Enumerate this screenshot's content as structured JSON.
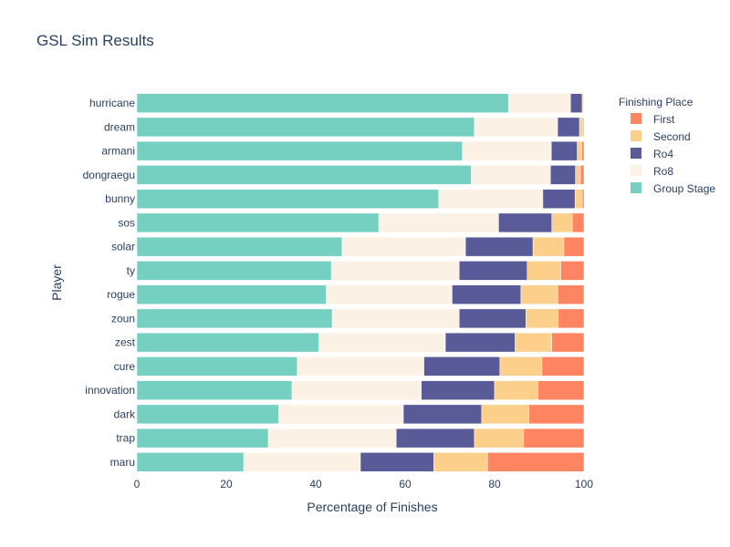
{
  "colors": {
    "First": "#ff8462",
    "Second": "#fcd08a",
    "Ro4": "#595b98",
    "Ro8": "#fbf1e4",
    "Group Stage": "#75d0c1",
    "text": "#2a3f5f"
  },
  "chart_data": {
    "type": "bar",
    "orientation": "horizontal",
    "stacked": true,
    "title": "GSL Sim Results",
    "xlabel": "Percentage of Finishes",
    "ylabel": "Player",
    "xlim": [
      0,
      100
    ],
    "xticks": [
      0,
      20,
      40,
      60,
      80,
      100
    ],
    "grid": false,
    "legend": {
      "title": "Finishing Place",
      "position": "right",
      "order": [
        "First",
        "Second",
        "Ro4",
        "Ro8",
        "Group Stage"
      ]
    },
    "categories": [
      "hurricane",
      "dream",
      "armani",
      "dongraegu",
      "bunny",
      "sos",
      "solar",
      "ty",
      "rogue",
      "zoun",
      "zest",
      "cure",
      "innovation",
      "dark",
      "trap",
      "maru"
    ],
    "series": [
      {
        "name": "Group Stage",
        "values": [
          83.1,
          75.5,
          72.8,
          74.8,
          67.5,
          54.1,
          45.9,
          43.5,
          42.3,
          43.7,
          40.7,
          35.9,
          34.7,
          31.7,
          29.4,
          23.9
        ]
      },
      {
        "name": "Ro8",
        "values": [
          13.9,
          18.6,
          19.9,
          17.7,
          23.3,
          26.8,
          27.6,
          28.6,
          28.2,
          28.4,
          28.3,
          28.3,
          28.9,
          27.9,
          28.6,
          26.1
        ]
      },
      {
        "name": "Ro4",
        "values": [
          2.6,
          4.9,
          5.8,
          5.6,
          7.2,
          11.9,
          15.1,
          15.2,
          15.4,
          14.9,
          15.6,
          17.0,
          16.4,
          17.5,
          17.5,
          16.4
        ]
      },
      {
        "name": "Second",
        "values": [
          0.3,
          0.8,
          1.0,
          1.1,
          1.6,
          4.6,
          6.9,
          7.5,
          8.2,
          7.2,
          8.2,
          9.4,
          9.7,
          10.6,
          11.0,
          12.0
        ]
      },
      {
        "name": "First",
        "values": [
          0.1,
          0.2,
          0.5,
          0.8,
          0.4,
          2.6,
          4.5,
          5.2,
          5.9,
          5.8,
          7.2,
          9.4,
          10.3,
          12.3,
          13.5,
          21.6
        ]
      }
    ]
  }
}
